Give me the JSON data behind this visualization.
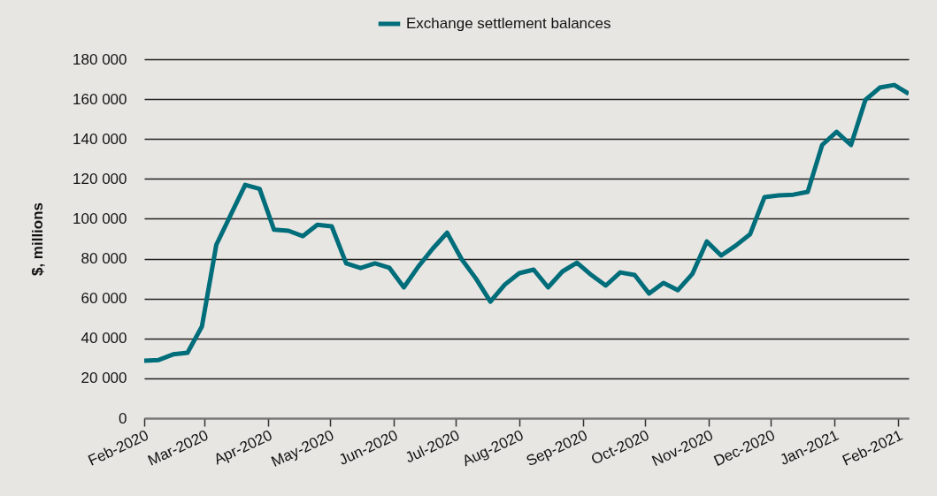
{
  "chart_data": {
    "type": "line",
    "ylabel": "$, millions",
    "legend": "top",
    "grid": "y",
    "marker": "none",
    "line_style": "solid",
    "x": [
      "2020-02-01",
      "2020-02-08",
      "2020-02-15",
      "2020-02-22",
      "2020-02-29",
      "2020-03-07",
      "2020-03-14",
      "2020-03-21",
      "2020-03-28",
      "2020-04-04",
      "2020-04-11",
      "2020-04-18",
      "2020-04-25",
      "2020-05-02",
      "2020-05-09",
      "2020-05-16",
      "2020-05-23",
      "2020-05-30",
      "2020-06-06",
      "2020-06-13",
      "2020-06-20",
      "2020-06-27",
      "2020-07-04",
      "2020-07-11",
      "2020-07-18",
      "2020-07-25",
      "2020-08-01",
      "2020-08-08",
      "2020-08-15",
      "2020-08-22",
      "2020-08-29",
      "2020-09-05",
      "2020-09-12",
      "2020-09-19",
      "2020-09-26",
      "2020-10-03",
      "2020-10-10",
      "2020-10-17",
      "2020-10-24",
      "2020-10-31",
      "2020-11-07",
      "2020-11-14",
      "2020-11-21",
      "2020-11-28",
      "2020-12-05",
      "2020-12-12",
      "2020-12-19",
      "2020-12-26",
      "2021-01-02",
      "2021-01-09",
      "2021-01-16",
      "2021-01-23",
      "2021-01-30",
      "2021-02-06"
    ],
    "series": [
      {
        "name": "Exchange settlement balances",
        "color": "#006d7a",
        "values": [
          28800,
          29200,
          32000,
          32800,
          46000,
          87000,
          102000,
          117000,
          115000,
          94500,
          94000,
          91300,
          97000,
          96200,
          77600,
          75300,
          77600,
          75400,
          65600,
          76000,
          85000,
          93000,
          79800,
          70000,
          58500,
          67000,
          72700,
          74500,
          65600,
          73600,
          78000,
          71800,
          66500,
          73100,
          71800,
          62500,
          67800,
          64200,
          72300,
          88600,
          81600,
          86500,
          92200,
          110800,
          111700,
          112100,
          113500,
          137000,
          143600,
          137000,
          159600,
          165800,
          167100,
          162700
        ]
      }
    ],
    "xlim": [
      "2020-02-01",
      "2021-02-06"
    ],
    "xticks": [
      {
        "value": "2020-02-01",
        "label": "Feb-2020"
      },
      {
        "value": "2020-03-01",
        "label": "Mar-2020"
      },
      {
        "value": "2020-04-01",
        "label": "Apr-2020"
      },
      {
        "value": "2020-05-01",
        "label": "May-2020"
      },
      {
        "value": "2020-06-01",
        "label": "Jun-2020"
      },
      {
        "value": "2020-07-01",
        "label": "Jul-2020"
      },
      {
        "value": "2020-08-01",
        "label": "Aug-2020"
      },
      {
        "value": "2020-09-01",
        "label": "Sep-2020"
      },
      {
        "value": "2020-10-01",
        "label": "Oct-2020"
      },
      {
        "value": "2020-11-01",
        "label": "Nov-2020"
      },
      {
        "value": "2020-12-01",
        "label": "Dec-2020"
      },
      {
        "value": "2021-01-01",
        "label": "Jan-2021"
      },
      {
        "value": "2021-02-01",
        "label": "Feb-2021"
      }
    ],
    "ylim": [
      0,
      180000
    ],
    "yticks": [
      0,
      {
        "value": 20000,
        "label": "20 000"
      },
      {
        "value": 40000,
        "label": "40 000"
      },
      {
        "value": 60000,
        "label": "60 000"
      },
      {
        "value": 80000,
        "label": "80 000"
      },
      {
        "value": 100000,
        "label": "100 000"
      },
      {
        "value": 120000,
        "label": "120 000"
      },
      {
        "value": 140000,
        "label": "140 000"
      },
      {
        "value": 160000,
        "label": "160 000"
      },
      {
        "value": 180000,
        "label": "180 000"
      }
    ]
  }
}
